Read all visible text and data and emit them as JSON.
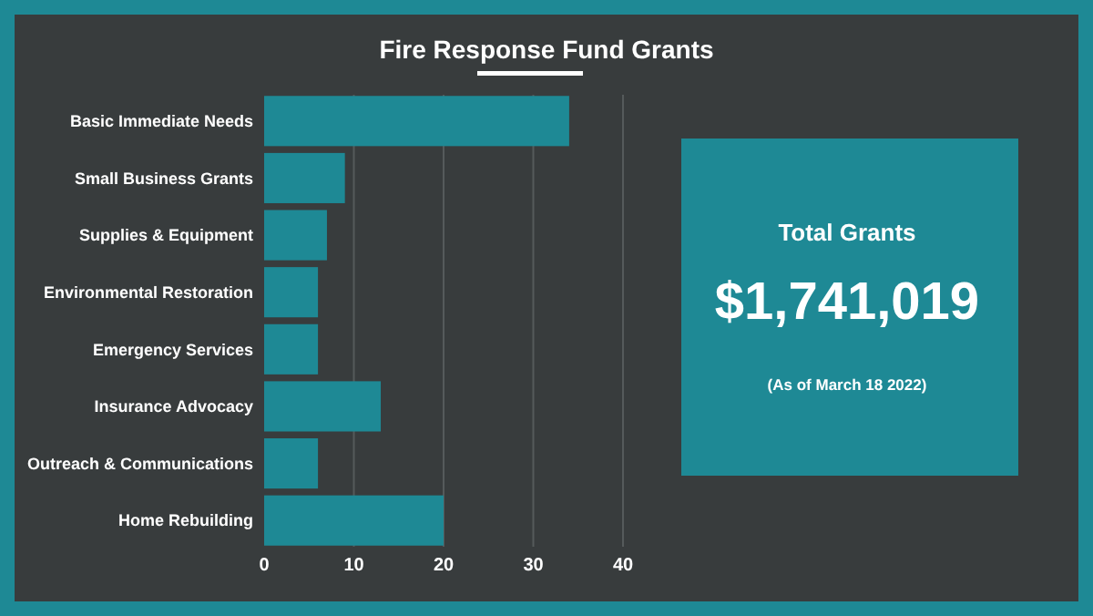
{
  "chart_data": [
    {
      "type": "bar",
      "title": "Fire Response Fund Grants",
      "orientation": "horizontal",
      "categories": [
        "Basic Immediate Needs",
        "Small Business Grants",
        "Supplies & Equipment",
        "Environmental Restoration",
        "Emergency Services",
        "Insurance Advocacy",
        "Outreach & Communications",
        "Home Rebuilding"
      ],
      "values": [
        34,
        9,
        7,
        6,
        6,
        13,
        6,
        20
      ],
      "color": "#1e8995",
      "xlim": [
        0,
        40
      ],
      "xticks": [
        0,
        10,
        20,
        30,
        40
      ],
      "grid": "x"
    },
    {
      "type": "other",
      "title": "Total Grants",
      "annotations": [
        "$1,741,019",
        "(As of March 18 2022)"
      ]
    }
  ]
}
